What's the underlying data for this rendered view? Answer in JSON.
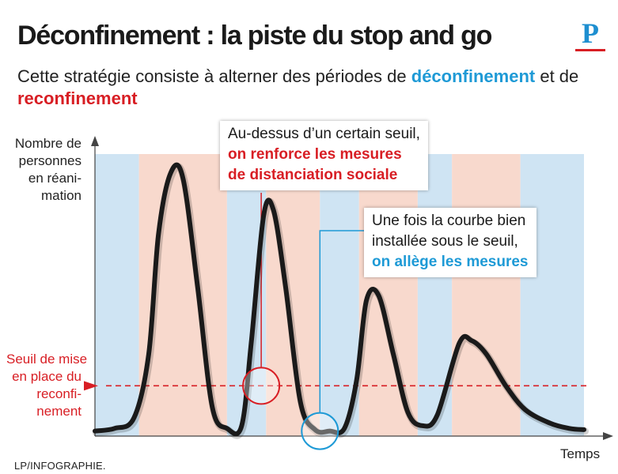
{
  "header": {
    "title": "Déconfinement : la piste du stop and go",
    "subtitle_prefix": "Cette stratégie consiste à alterner des périodes de",
    "subtitle_highlight_1": "déconfinement",
    "subtitle_middle": "et de",
    "subtitle_highlight_2": "reconfinement",
    "logo_letter": "P"
  },
  "annotations": {
    "callout_1": {
      "line1": "Au-dessus d’un certain seuil,",
      "line2": "on renforce les mesures",
      "line3": "de distanciation sociale"
    },
    "callout_2": {
      "line1": "Une fois la courbe bien",
      "line2": "installée sous le seuil,",
      "line3": "on allège les mesures"
    }
  },
  "footer": {
    "credit": "LP/INFOGRAPHIE."
  },
  "colors": {
    "deconfinement": "#cfe4f3",
    "reconfinement": "#f8d9cd",
    "threshold": "#d81e24",
    "curve": "#1a1a1a",
    "accent_blue": "#1e9ad6"
  },
  "chart_data": {
    "type": "line",
    "title": "Déconfinement : la piste du stop and go",
    "xlabel": "Temps",
    "ylabel": [
      "Nombre de",
      "personnes",
      "en réani-",
      "mation"
    ],
    "threshold_label": [
      "Seuil de mise",
      "en place du",
      "reconfi-",
      "nement"
    ],
    "xlim": [
      0,
      100
    ],
    "ylim": [
      0,
      100
    ],
    "threshold": 18,
    "bands": [
      {
        "from": 0,
        "to": 9,
        "phase": "deconfinement"
      },
      {
        "from": 9,
        "to": 27,
        "phase": "reconfinement"
      },
      {
        "from": 27,
        "to": 35,
        "phase": "deconfinement"
      },
      {
        "from": 35,
        "to": 46,
        "phase": "reconfinement"
      },
      {
        "from": 46,
        "to": 54,
        "phase": "deconfinement"
      },
      {
        "from": 54,
        "to": 66,
        "phase": "reconfinement"
      },
      {
        "from": 66,
        "to": 73,
        "phase": "deconfinement"
      },
      {
        "from": 73,
        "to": 87,
        "phase": "reconfinement"
      },
      {
        "from": 87,
        "to": 100,
        "phase": "deconfinement"
      }
    ],
    "series": [
      {
        "x": [
          0,
          4,
          8,
          11,
          13,
          15.5,
          18,
          21,
          24,
          27,
          30,
          32,
          34.5,
          36.5,
          39,
          42,
          45,
          48,
          51,
          53.5,
          55.5,
          58,
          61,
          64,
          67,
          70,
          74.5,
          77,
          80,
          84,
          88,
          93,
          97,
          100
        ],
        "y": [
          1,
          2,
          6,
          30,
          75,
          98,
          96,
          55,
          10,
          2,
          3,
          35,
          82,
          84,
          55,
          12,
          1.5,
          1,
          2,
          20,
          50,
          52,
          30,
          8,
          3,
          7,
          34,
          35,
          30,
          18,
          9,
          4,
          2,
          1.5
        ]
      }
    ],
    "markers": [
      {
        "type": "circle",
        "x": 34,
        "y": 18,
        "color": "red"
      },
      {
        "type": "circle",
        "x": 46,
        "y": 1,
        "color": "blue"
      }
    ]
  }
}
